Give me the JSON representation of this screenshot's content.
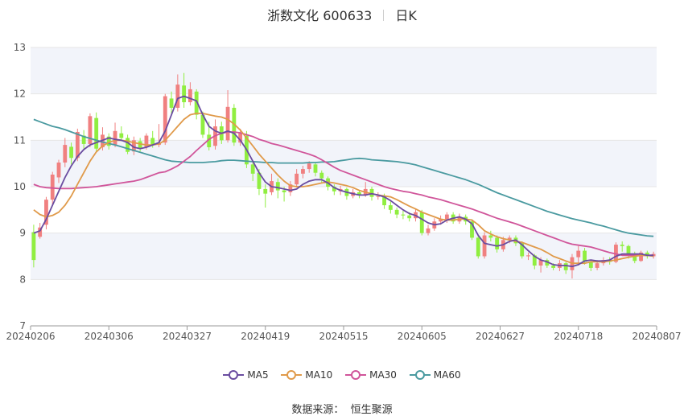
{
  "header": {
    "title": "浙数文化 600633",
    "period": "日K"
  },
  "source": {
    "label": "数据来源：",
    "name": "恒生聚源"
  },
  "colors": {
    "up": "#f08080",
    "down": "#90ee40",
    "ma5": "#6a4ca0",
    "ma10": "#e09a4a",
    "ma30": "#d0559a",
    "ma60": "#4a9aa0",
    "grid": "#e6e6e6",
    "band": "#f2f4fa"
  },
  "chart_data": {
    "type": "candlestick",
    "ylim": [
      7,
      13
    ],
    "yticks": [
      7,
      8,
      9,
      10,
      11,
      12,
      13
    ],
    "xticks": [
      "20240206",
      "20240306",
      "20240327",
      "20240419",
      "20240515",
      "20240605",
      "20240627",
      "20240718",
      "20240807"
    ],
    "legend": [
      {
        "key": "ma5",
        "label": "MA5"
      },
      {
        "key": "ma10",
        "label": "MA10"
      },
      {
        "key": "ma30",
        "label": "MA30"
      },
      {
        "key": "ma60",
        "label": "MA60"
      }
    ],
    "ohlc": [
      [
        9.02,
        8.42,
        9.18,
        8.26
      ],
      [
        8.92,
        9.12,
        9.22,
        8.88
      ],
      [
        9.18,
        9.72,
        9.78,
        9.08
      ],
      [
        9.72,
        10.26,
        10.32,
        9.62
      ],
      [
        10.2,
        10.52,
        10.58,
        10.08
      ],
      [
        10.52,
        10.9,
        11.05,
        10.42
      ],
      [
        10.86,
        10.62,
        10.95,
        10.48
      ],
      [
        10.62,
        11.18,
        11.25,
        10.55
      ],
      [
        11.1,
        10.92,
        11.22,
        10.82
      ],
      [
        10.92,
        11.52,
        11.58,
        10.85
      ],
      [
        11.48,
        10.82,
        11.6,
        10.76
      ],
      [
        10.85,
        11.12,
        11.28,
        10.78
      ],
      [
        11.08,
        10.88,
        11.15,
        10.8
      ],
      [
        10.9,
        11.2,
        11.38,
        10.85
      ],
      [
        11.15,
        11.05,
        11.3,
        10.98
      ],
      [
        11.05,
        10.75,
        11.12,
        10.7
      ],
      [
        10.76,
        11.0,
        11.08,
        10.68
      ],
      [
        10.98,
        10.82,
        11.05,
        10.76
      ],
      [
        10.85,
        11.1,
        11.15,
        10.8
      ],
      [
        11.05,
        10.9,
        11.2,
        10.84
      ],
      [
        10.9,
        10.95,
        11.35,
        10.85
      ],
      [
        10.95,
        11.95,
        12.0,
        10.9
      ],
      [
        11.9,
        11.7,
        12.05,
        11.55
      ],
      [
        11.7,
        12.2,
        12.42,
        11.62
      ],
      [
        12.18,
        11.82,
        12.45,
        11.7
      ],
      [
        11.82,
        12.1,
        12.25,
        11.75
      ],
      [
        12.05,
        11.55,
        12.1,
        11.45
      ],
      [
        11.55,
        11.12,
        11.62,
        11.05
      ],
      [
        11.12,
        10.85,
        11.4,
        10.78
      ],
      [
        10.88,
        11.3,
        11.45,
        10.8
      ],
      [
        11.3,
        11.0,
        11.4,
        10.92
      ],
      [
        11.0,
        11.72,
        12.08,
        10.95
      ],
      [
        11.7,
        10.95,
        11.78,
        10.88
      ],
      [
        10.95,
        11.15,
        11.25,
        10.88
      ],
      [
        11.1,
        10.48,
        11.2,
        10.4
      ],
      [
        10.48,
        10.28,
        10.55,
        10.12
      ],
      [
        10.3,
        9.95,
        10.38,
        9.82
      ],
      [
        9.95,
        9.85,
        10.05,
        9.55
      ],
      [
        9.88,
        10.12,
        10.28,
        9.82
      ],
      [
        10.1,
        9.92,
        10.18,
        9.75
      ],
      [
        9.92,
        9.88,
        10.0,
        9.68
      ],
      [
        9.88,
        10.05,
        10.12,
        9.8
      ],
      [
        10.05,
        10.28,
        10.38,
        9.98
      ],
      [
        10.28,
        10.38,
        10.45,
        10.18
      ],
      [
        10.38,
        10.5,
        10.55,
        10.3
      ],
      [
        10.48,
        10.3,
        10.52,
        10.22
      ],
      [
        10.3,
        10.18,
        10.35,
        10.08
      ],
      [
        10.18,
        10.0,
        10.22,
        9.92
      ],
      [
        10.0,
        9.9,
        10.05,
        9.82
      ],
      [
        9.9,
        9.95,
        10.02,
        9.82
      ],
      [
        9.95,
        9.8,
        9.98,
        9.72
      ],
      [
        9.8,
        9.88,
        9.95,
        9.75
      ],
      [
        9.88,
        9.82,
        9.92,
        9.75
      ],
      [
        9.82,
        9.95,
        10.1,
        9.78
      ],
      [
        9.95,
        9.78,
        10.0,
        9.7
      ],
      [
        9.78,
        9.8,
        9.88,
        9.72
      ],
      [
        9.8,
        9.6,
        9.85,
        9.52
      ],
      [
        9.6,
        9.5,
        9.68,
        9.42
      ],
      [
        9.5,
        9.4,
        9.55,
        9.32
      ],
      [
        9.4,
        9.38,
        9.48,
        9.3
      ],
      [
        9.38,
        9.32,
        9.45,
        9.25
      ],
      [
        9.32,
        9.45,
        9.52,
        9.25
      ],
      [
        9.45,
        9.0,
        9.5,
        8.95
      ],
      [
        9.0,
        9.1,
        9.18,
        8.95
      ],
      [
        9.1,
        9.25,
        9.32,
        9.05
      ],
      [
        9.25,
        9.3,
        9.38,
        9.18
      ],
      [
        9.3,
        9.4,
        9.45,
        9.22
      ],
      [
        9.4,
        9.25,
        9.45,
        9.2
      ],
      [
        9.25,
        9.35,
        9.42,
        9.2
      ],
      [
        9.35,
        9.25,
        9.4,
        9.18
      ],
      [
        9.25,
        8.9,
        9.3,
        8.85
      ],
      [
        8.9,
        8.5,
        8.95,
        8.45
      ],
      [
        8.5,
        8.95,
        9.02,
        8.45
      ],
      [
        8.95,
        8.9,
        9.05,
        8.82
      ],
      [
        8.9,
        8.65,
        8.95,
        8.58
      ],
      [
        8.65,
        8.85,
        8.92,
        8.6
      ],
      [
        8.85,
        8.9,
        8.95,
        8.78
      ],
      [
        8.9,
        8.78,
        8.95,
        8.72
      ],
      [
        8.78,
        8.5,
        8.82,
        8.45
      ],
      [
        8.5,
        8.52,
        8.58,
        8.42
      ],
      [
        8.52,
        8.3,
        8.55,
        8.22
      ],
      [
        8.3,
        8.42,
        8.48,
        8.15
      ],
      [
        8.42,
        8.3,
        8.45,
        8.25
      ],
      [
        8.3,
        8.25,
        8.35,
        8.2
      ],
      [
        8.25,
        8.35,
        8.42,
        8.18
      ],
      [
        8.35,
        8.2,
        8.38,
        8.12
      ],
      [
        8.2,
        8.48,
        8.55,
        8.02
      ],
      [
        8.48,
        8.62,
        8.72,
        8.3
      ],
      [
        8.62,
        8.38,
        8.68,
        8.32
      ],
      [
        8.38,
        8.25,
        8.42,
        8.18
      ],
      [
        8.25,
        8.35,
        8.42,
        8.2
      ],
      [
        8.35,
        8.42,
        8.48,
        8.3
      ],
      [
        8.42,
        8.38,
        8.48,
        8.32
      ],
      [
        8.38,
        8.75,
        8.8,
        8.35
      ],
      [
        8.75,
        8.72,
        8.82,
        8.6
      ],
      [
        8.72,
        8.55,
        8.75,
        8.45
      ],
      [
        8.55,
        8.4,
        8.6,
        8.35
      ],
      [
        8.4,
        8.58,
        8.62,
        8.38
      ],
      [
        8.58,
        8.5,
        8.62,
        8.45
      ],
      [
        8.5,
        8.55,
        8.6,
        8.45
      ]
    ],
    "ma_series": {
      "ma5": [
        9.0,
        9.05,
        9.3,
        9.6,
        9.9,
        10.2,
        10.45,
        10.65,
        10.8,
        10.9,
        10.95,
        11.0,
        11.05,
        11.02,
        11.0,
        10.95,
        10.85,
        10.82,
        10.85,
        10.9,
        10.95,
        11.2,
        11.55,
        11.9,
        11.95,
        11.9,
        11.85,
        11.55,
        11.3,
        11.2,
        11.15,
        11.2,
        11.15,
        11.0,
        10.8,
        10.55,
        10.3,
        10.1,
        10.0,
        9.98,
        9.95,
        9.92,
        9.95,
        10.05,
        10.12,
        10.15,
        10.15,
        10.08,
        9.98,
        9.92,
        9.88,
        9.85,
        9.82,
        9.82,
        9.85,
        9.82,
        9.78,
        9.7,
        9.6,
        9.5,
        9.42,
        9.38,
        9.3,
        9.22,
        9.18,
        9.2,
        9.28,
        9.32,
        9.35,
        9.3,
        9.2,
        8.95,
        8.78,
        8.75,
        8.72,
        8.75,
        8.82,
        8.85,
        8.75,
        8.62,
        8.5,
        8.42,
        8.38,
        8.32,
        8.3,
        8.3,
        8.28,
        8.32,
        8.4,
        8.42,
        8.4,
        8.4,
        8.42,
        8.5,
        8.55,
        8.55,
        8.55,
        8.55,
        8.52,
        8.52
      ],
      "ma10": [
        9.5,
        9.4,
        9.35,
        9.38,
        9.45,
        9.6,
        9.8,
        10.05,
        10.3,
        10.55,
        10.75,
        10.88,
        10.95,
        11.0,
        11.0,
        10.98,
        10.95,
        10.92,
        10.9,
        10.9,
        10.92,
        11.0,
        11.15,
        11.3,
        11.45,
        11.55,
        11.58,
        11.58,
        11.55,
        11.52,
        11.5,
        11.45,
        11.35,
        11.22,
        11.05,
        10.88,
        10.7,
        10.55,
        10.4,
        10.25,
        10.12,
        10.02,
        10.0,
        10.0,
        10.02,
        10.05,
        10.08,
        10.1,
        10.08,
        10.05,
        10.02,
        9.98,
        9.92,
        9.88,
        9.85,
        9.82,
        9.8,
        9.78,
        9.72,
        9.65,
        9.58,
        9.52,
        9.45,
        9.4,
        9.35,
        9.3,
        9.28,
        9.28,
        9.3,
        9.3,
        9.28,
        9.18,
        9.05,
        8.98,
        8.92,
        8.88,
        8.85,
        8.82,
        8.8,
        8.75,
        8.7,
        8.65,
        8.58,
        8.5,
        8.45,
        8.4,
        8.35,
        8.35,
        8.35,
        8.38,
        8.38,
        8.38,
        8.4,
        8.42,
        8.45,
        8.48,
        8.5,
        8.52,
        8.52,
        8.5
      ],
      "ma30": [
        10.05,
        10.0,
        9.98,
        9.97,
        9.96,
        9.96,
        9.96,
        9.97,
        9.98,
        9.99,
        10.0,
        10.02,
        10.04,
        10.06,
        10.08,
        10.1,
        10.12,
        10.15,
        10.2,
        10.25,
        10.3,
        10.32,
        10.38,
        10.45,
        10.55,
        10.65,
        10.78,
        10.9,
        11.02,
        11.1,
        11.15,
        11.18,
        11.18,
        11.16,
        11.12,
        11.08,
        11.02,
        10.98,
        10.93,
        10.9,
        10.86,
        10.82,
        10.78,
        10.74,
        10.7,
        10.65,
        10.58,
        10.5,
        10.42,
        10.35,
        10.3,
        10.25,
        10.2,
        10.15,
        10.1,
        10.05,
        10.0,
        9.96,
        9.93,
        9.9,
        9.88,
        9.85,
        9.82,
        9.78,
        9.75,
        9.72,
        9.68,
        9.64,
        9.6,
        9.56,
        9.52,
        9.47,
        9.42,
        9.37,
        9.32,
        9.28,
        9.24,
        9.2,
        9.15,
        9.1,
        9.05,
        9.0,
        8.95,
        8.9,
        8.85,
        8.8,
        8.76,
        8.74,
        8.72,
        8.7,
        8.66,
        8.62,
        8.58,
        8.55,
        8.52,
        8.52,
        8.52,
        8.52,
        8.52,
        8.52
      ],
      "ma60": [
        11.45,
        11.4,
        11.35,
        11.3,
        11.27,
        11.23,
        11.18,
        11.13,
        11.08,
        11.04,
        11.0,
        10.96,
        10.93,
        10.9,
        10.86,
        10.82,
        10.78,
        10.74,
        10.7,
        10.66,
        10.62,
        10.58,
        10.55,
        10.54,
        10.53,
        10.52,
        10.52,
        10.52,
        10.53,
        10.54,
        10.56,
        10.57,
        10.57,
        10.56,
        10.55,
        10.54,
        10.53,
        10.52,
        10.52,
        10.51,
        10.51,
        10.51,
        10.51,
        10.51,
        10.52,
        10.52,
        10.53,
        10.53,
        10.54,
        10.56,
        10.58,
        10.6,
        10.61,
        10.6,
        10.58,
        10.57,
        10.56,
        10.55,
        10.54,
        10.52,
        10.5,
        10.47,
        10.43,
        10.39,
        10.35,
        10.31,
        10.27,
        10.23,
        10.19,
        10.15,
        10.1,
        10.05,
        9.99,
        9.93,
        9.87,
        9.82,
        9.77,
        9.72,
        9.67,
        9.62,
        9.57,
        9.52,
        9.47,
        9.43,
        9.39,
        9.35,
        9.31,
        9.28,
        9.25,
        9.22,
        9.18,
        9.15,
        9.11,
        9.07,
        9.03,
        9.0,
        8.98,
        8.96,
        8.94,
        8.93
      ]
    }
  }
}
